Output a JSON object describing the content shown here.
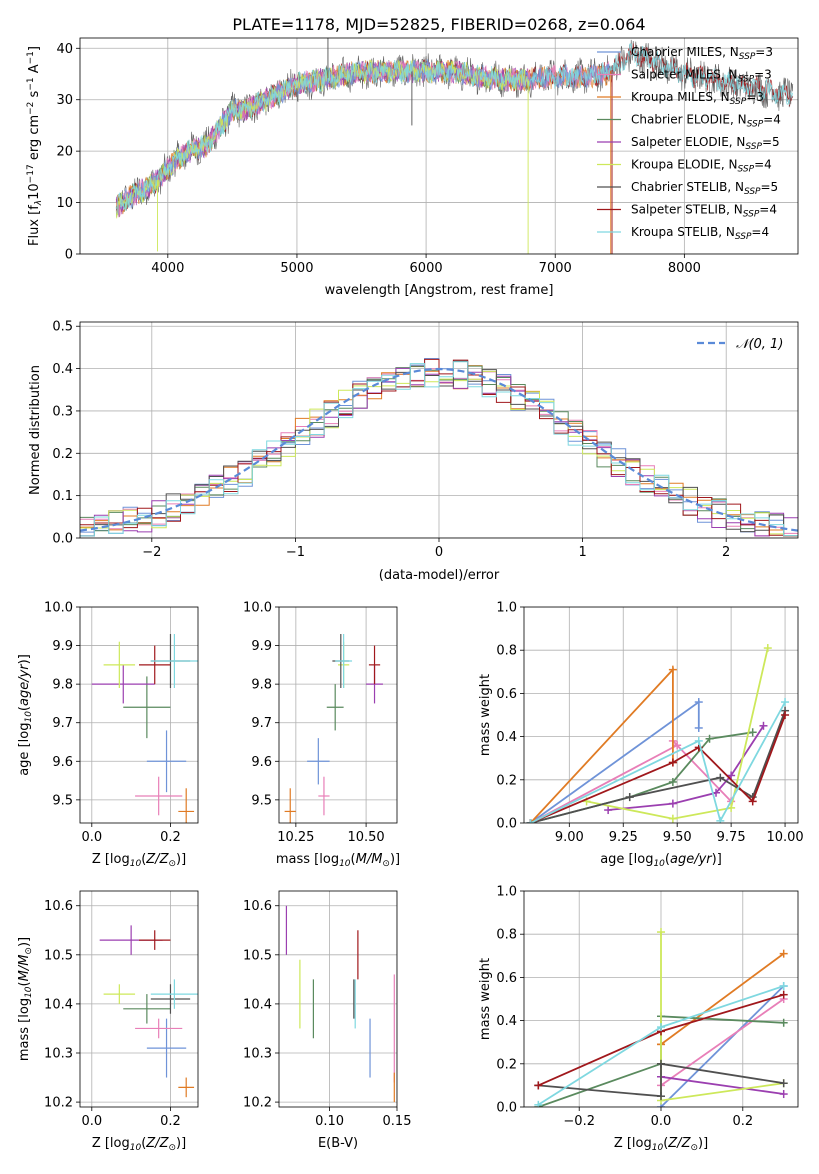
{
  "title": "PLATE=1178, MJD=52825, FIBERID=0268, z=0.064",
  "colors": {
    "chabrier_miles": "#6f93d8",
    "salpeter_miles": "#e87fb8",
    "kroupa_miles": "#e07b24",
    "chabrier_elodie": "#5a8a5e",
    "salpeter_elodie": "#9b3fb0",
    "kroupa_elodie": "#cde85a",
    "chabrier_stelib": "#505050",
    "salpeter_stelib": "#a0181c",
    "kroupa_stelib": "#7fd8e0",
    "normal": "#5a8ad8"
  },
  "chart_data": [
    {
      "id": "spectrum",
      "type": "line",
      "xlabel": "wavelength [Angstrom, rest frame]",
      "ylabel": "Flux [f_λ10^-17 erg cm^-2 s^-1 A^-1]",
      "xlim": [
        3320,
        8880
      ],
      "ylim": [
        0,
        42
      ],
      "xticks": [
        "4000",
        "5000",
        "6000",
        "7000",
        "8000"
      ],
      "yticks": [
        "0",
        "10",
        "20",
        "30",
        "40"
      ],
      "grid": true,
      "legend_position": "top-right",
      "legend": [
        "Chabrier MILES, N_SSP=3",
        "Salpeter MILES, N_SSP=3",
        "Kroupa MILES, N_SSP=3",
        "Chabrier ELODIE, N_SSP=4",
        "Salpeter ELODIE, N_SSP=5",
        "Kroupa ELODIE, N_SSP=4",
        "Chabrier STELIB, N_SSP=5",
        "Salpeter STELIB, N_SSP=4",
        "Kroupa STELIB, N_SSP=4"
      ],
      "legend_parts": [
        [
          "Chabrier MILES, N",
          "SSP",
          "=3"
        ],
        [
          "Salpeter MILES, N",
          "SSP",
          "=3"
        ],
        [
          "Kroupa MILES, N",
          "SSP",
          "=3"
        ],
        [
          "Chabrier ELODIE, N",
          "SSP",
          "=4"
        ],
        [
          "Salpeter ELODIE, N",
          "SSP",
          "=5"
        ],
        [
          "Kroupa ELODIE, N",
          "SSP",
          "=4"
        ],
        [
          "Chabrier STELIB, N",
          "SSP",
          "=5"
        ],
        [
          "Salpeter STELIB, N",
          "SSP",
          "=4"
        ],
        [
          "Kroupa STELIB, N",
          "SSP",
          "=4"
        ]
      ],
      "continuum": {
        "x": [
          3600,
          3700,
          3850,
          3950,
          4050,
          4200,
          4300,
          4400,
          4500,
          4600,
          4800,
          5000,
          5200,
          5400,
          5600,
          5800,
          6000,
          6200,
          6400,
          6600,
          6800,
          7000,
          7200,
          7400,
          7600,
          7800,
          8000,
          8200,
          8400,
          8600,
          8800
        ],
        "y": [
          9,
          11,
          13,
          15,
          18,
          20.5,
          21,
          24.5,
          28,
          28,
          30.5,
          33,
          34,
          35,
          35.5,
          35.5,
          35.5,
          35.5,
          34.5,
          34,
          34,
          34.5,
          34.5,
          35,
          39,
          37,
          35,
          34,
          33,
          32,
          31
        ]
      },
      "spikes": [
        {
          "x": 3920,
          "y": 0.5,
          "series": "kroupa_elodie"
        },
        {
          "x": 5240,
          "y": 42,
          "series": "chabrier_stelib"
        },
        {
          "x": 5890,
          "y": 25,
          "series": "chabrier_stelib"
        },
        {
          "x": 6790,
          "y": 0,
          "series": "kroupa_elodie"
        },
        {
          "x": 7430,
          "y": 0,
          "series": "kroupa_miles"
        },
        {
          "x": 7440,
          "y": 0,
          "series": "salpeter_stelib"
        }
      ]
    },
    {
      "id": "residual_hist",
      "type": "bar",
      "xlabel": "(data-model)/error",
      "ylabel": "Normed distribution",
      "xlim": [
        -2.5,
        2.5
      ],
      "ylim": [
        0,
        0.51
      ],
      "xticks": [
        "−2",
        "−1",
        "0",
        "1",
        "2"
      ],
      "yticks": [
        "0.0",
        "0.1",
        "0.2",
        "0.3",
        "0.4",
        "0.5"
      ],
      "grid": true,
      "legend_position": "top-right",
      "legend": [
        "𝒩(0, 1)"
      ],
      "bin_width": 0.1,
      "series_order": [
        "chabrier_miles",
        "salpeter_miles",
        "kroupa_miles",
        "chabrier_elodie",
        "salpeter_elodie",
        "kroupa_elodie",
        "chabrier_stelib",
        "salpeter_stelib",
        "kroupa_stelib"
      ],
      "normal_curve": {
        "mu": 0,
        "sigma": 1
      }
    },
    {
      "id": "age_vs_Z",
      "type": "scatter",
      "xlabel": "Z [log10(Z/Z⊙)]",
      "ylabel": "age [log10(age/yr)]",
      "xlim": [
        -0.03,
        0.27
      ],
      "ylim": [
        9.44,
        10.0
      ],
      "xticks": [
        "0.0",
        "0.2"
      ],
      "yticks": [
        "9.5",
        "9.6",
        "9.7",
        "9.8",
        "9.9",
        "10.0"
      ],
      "grid": true,
      "points": [
        {
          "series": "chabrier_miles",
          "x": 0.19,
          "xerr": 0.05,
          "y": 9.6,
          "yerr": 0.08
        },
        {
          "series": "salpeter_miles",
          "x": 0.17,
          "xerr": 0.06,
          "y": 9.51,
          "yerr": 0.05
        },
        {
          "series": "kroupa_miles",
          "x": 0.24,
          "xerr": 0.02,
          "y": 9.47,
          "yerr": 0.06
        },
        {
          "series": "chabrier_elodie",
          "x": 0.14,
          "xerr": 0.06,
          "y": 9.74,
          "yerr": 0.08
        },
        {
          "series": "salpeter_elodie",
          "x": 0.08,
          "xerr": 0.08,
          "y": 9.8,
          "yerr": 0.05
        },
        {
          "series": "kroupa_elodie",
          "x": 0.07,
          "xerr": 0.04,
          "y": 9.85,
          "yerr": 0.06
        },
        {
          "series": "chabrier_stelib",
          "x": 0.2,
          "xerr": 0.05,
          "y": 9.86,
          "yerr": 0.07
        },
        {
          "series": "salpeter_stelib",
          "x": 0.16,
          "xerr": 0.04,
          "y": 9.85,
          "yerr": 0.05
        },
        {
          "series": "kroupa_stelib",
          "x": 0.21,
          "xerr": 0.06,
          "y": 9.86,
          "yerr": 0.07
        }
      ]
    },
    {
      "id": "age_vs_mass",
      "type": "scatter",
      "xlabel": "mass [log10(M/M⊙)]",
      "ylabel": "",
      "xlim": [
        10.19,
        10.61
      ],
      "ylim": [
        9.44,
        10.0
      ],
      "xticks": [
        "10.25",
        "10.50"
      ],
      "yticks": [
        "9.5",
        "9.6",
        "9.7",
        "9.8",
        "9.9",
        "10.0"
      ],
      "grid": true,
      "points": [
        {
          "series": "chabrier_miles",
          "x": 10.33,
          "xerr": 0.04,
          "y": 9.6,
          "yerr": 0.06
        },
        {
          "series": "salpeter_miles",
          "x": 10.35,
          "xerr": 0.02,
          "y": 9.51,
          "yerr": 0.05
        },
        {
          "series": "kroupa_miles",
          "x": 10.23,
          "xerr": 0.02,
          "y": 9.47,
          "yerr": 0.06
        },
        {
          "series": "chabrier_elodie",
          "x": 10.39,
          "xerr": 0.03,
          "y": 9.74,
          "yerr": 0.06
        },
        {
          "series": "salpeter_elodie",
          "x": 10.53,
          "xerr": 0.03,
          "y": 9.8,
          "yerr": 0.05
        },
        {
          "series": "kroupa_elodie",
          "x": 10.42,
          "xerr": 0.02,
          "y": 9.85,
          "yerr": 0.06
        },
        {
          "series": "chabrier_stelib",
          "x": 10.41,
          "xerr": 0.03,
          "y": 9.86,
          "yerr": 0.07
        },
        {
          "series": "salpeter_stelib",
          "x": 10.53,
          "xerr": 0.02,
          "y": 9.85,
          "yerr": 0.05
        },
        {
          "series": "kroupa_stelib",
          "x": 10.42,
          "xerr": 0.03,
          "y": 9.86,
          "yerr": 0.07
        }
      ]
    },
    {
      "id": "weights_vs_age",
      "type": "line",
      "xlabel": "age [log10(age/yr)]",
      "ylabel": "mass weight",
      "xlim": [
        8.79,
        10.06
      ],
      "ylim": [
        0,
        1.0
      ],
      "xticks": [
        "9.00",
        "9.25",
        "9.50",
        "9.75",
        "10.00"
      ],
      "yticks": [
        "0.0",
        "0.2",
        "0.4",
        "0.6",
        "0.8",
        "1.0"
      ],
      "grid": true,
      "series": [
        {
          "key": "chabrier_miles",
          "x": [
            8.82,
            9.6,
            9.6
          ],
          "y": [
            0.0,
            0.56,
            0.44
          ]
        },
        {
          "key": "salpeter_miles",
          "x": [
            8.82,
            9.5,
            9.48,
            9.75
          ],
          "y": [
            0.0,
            0.36,
            0.38,
            0.1
          ]
        },
        {
          "key": "kroupa_miles",
          "x": [
            8.82,
            9.48,
            9.48
          ],
          "y": [
            0.0,
            0.71,
            0.28
          ]
        },
        {
          "key": "chabrier_elodie",
          "x": [
            8.82,
            9.28,
            9.48,
            9.65,
            9.85
          ],
          "y": [
            0.0,
            0.12,
            0.19,
            0.39,
            0.42
          ]
        },
        {
          "key": "salpeter_elodie",
          "x": [
            9.18,
            9.48,
            9.68,
            9.75,
            9.9
          ],
          "y": [
            0.06,
            0.09,
            0.14,
            0.22,
            0.45
          ]
        },
        {
          "key": "kroupa_elodie",
          "x": [
            9.08,
            9.48,
            9.75,
            9.92
          ],
          "y": [
            0.1,
            0.02,
            0.07,
            0.81
          ]
        },
        {
          "key": "chabrier_stelib",
          "x": [
            8.82,
            9.28,
            9.7,
            9.85,
            10.0
          ],
          "y": [
            0.0,
            0.12,
            0.21,
            0.12,
            0.52
          ]
        },
        {
          "key": "salpeter_stelib",
          "x": [
            8.82,
            9.48,
            9.6,
            9.85,
            10.0
          ],
          "y": [
            0.0,
            0.28,
            0.35,
            0.1,
            0.5
          ]
        },
        {
          "key": "kroupa_stelib",
          "x": [
            8.82,
            9.6,
            9.7,
            10.0
          ],
          "y": [
            0.0,
            0.38,
            0.01,
            0.56
          ]
        }
      ]
    },
    {
      "id": "mass_vs_Z",
      "type": "scatter",
      "xlabel": "Z [log10(Z/Z⊙)]",
      "ylabel": "mass [log10(M/M⊙)]",
      "xlim": [
        -0.03,
        0.27
      ],
      "ylim": [
        10.19,
        10.63
      ],
      "xticks": [
        "0.0",
        "0.2"
      ],
      "yticks": [
        "10.2",
        "10.3",
        "10.4",
        "10.5",
        "10.6"
      ],
      "grid": true,
      "points": [
        {
          "series": "chabrier_miles",
          "x": 0.19,
          "xerr": 0.05,
          "y": 10.31,
          "yerr": 0.06
        },
        {
          "series": "salpeter_miles",
          "x": 0.17,
          "xerr": 0.06,
          "y": 10.35,
          "yerr": 0.02
        },
        {
          "series": "kroupa_miles",
          "x": 0.24,
          "xerr": 0.02,
          "y": 10.23,
          "yerr": 0.02
        },
        {
          "series": "chabrier_elodie",
          "x": 0.14,
          "xerr": 0.06,
          "y": 10.39,
          "yerr": 0.03
        },
        {
          "series": "salpeter_elodie",
          "x": 0.1,
          "xerr": 0.08,
          "y": 10.53,
          "yerr": 0.03
        },
        {
          "series": "kroupa_elodie",
          "x": 0.07,
          "xerr": 0.04,
          "y": 10.42,
          "yerr": 0.02
        },
        {
          "series": "chabrier_stelib",
          "x": 0.2,
          "xerr": 0.05,
          "y": 10.41,
          "yerr": 0.03
        },
        {
          "series": "salpeter_stelib",
          "x": 0.16,
          "xerr": 0.04,
          "y": 10.53,
          "yerr": 0.02
        },
        {
          "series": "kroupa_stelib",
          "x": 0.21,
          "xerr": 0.06,
          "y": 10.42,
          "yerr": 0.03
        }
      ]
    },
    {
      "id": "mass_vs_ebv",
      "type": "scatter",
      "xlabel": "E(B-V)",
      "ylabel": "",
      "xlim": [
        0.0625,
        0.15
      ],
      "ylim": [
        10.19,
        10.63
      ],
      "xticks": [
        "0.10",
        "0.15"
      ],
      "yticks": [
        "10.2",
        "10.3",
        "10.4",
        "10.5",
        "10.6"
      ],
      "grid": true,
      "points": [
        {
          "series": "chabrier_miles",
          "x": 0.13,
          "y": 10.31,
          "yerr": 0.06
        },
        {
          "series": "salpeter_miles",
          "x": 0.148,
          "y": 10.35,
          "yerr": 0.11
        },
        {
          "series": "kroupa_miles",
          "x": 0.148,
          "y": 10.23,
          "yerr": 0.03
        },
        {
          "series": "chabrier_elodie",
          "x": 0.088,
          "y": 10.39,
          "yerr": 0.06
        },
        {
          "series": "salpeter_elodie",
          "x": 0.068,
          "y": 10.55,
          "yerr": 0.05
        },
        {
          "series": "kroupa_elodie",
          "x": 0.078,
          "y": 10.42,
          "yerr": 0.07
        },
        {
          "series": "chabrier_stelib",
          "x": 0.118,
          "y": 10.41,
          "yerr": 0.04
        },
        {
          "series": "salpeter_stelib",
          "x": 0.121,
          "y": 10.5,
          "yerr": 0.05
        },
        {
          "series": "kroupa_stelib",
          "x": 0.119,
          "y": 10.4,
          "yerr": 0.05
        }
      ]
    },
    {
      "id": "weights_vs_Z",
      "type": "line",
      "xlabel": "Z [log10(Z/Z⊙)]",
      "ylabel": "mass weight",
      "xlim": [
        -0.335,
        0.335
      ],
      "ylim": [
        0,
        1.0
      ],
      "xticks": [
        "−0.2",
        "0.0",
        "0.2"
      ],
      "yticks": [
        "0.0",
        "0.2",
        "0.4",
        "0.6",
        "0.8",
        "1.0"
      ],
      "grid": true,
      "series": [
        {
          "key": "chabrier_miles",
          "x": [
            0.0,
            0.3
          ],
          "y": [
            0.0,
            0.56
          ]
        },
        {
          "key": "salpeter_miles",
          "x": [
            0.0,
            0.3
          ],
          "y": [
            0.1,
            0.5
          ]
        },
        {
          "key": "kroupa_miles",
          "x": [
            0.0,
            0.0,
            0.3
          ],
          "y": [
            0.29,
            0.29,
            0.71
          ]
        },
        {
          "key": "chabrier_elodie",
          "x": [
            -0.3,
            0.0,
            0.0,
            0.3
          ],
          "y": [
            0.0,
            0.2,
            0.42,
            0.39
          ]
        },
        {
          "key": "salpeter_elodie",
          "x": [
            0.0,
            0.3
          ],
          "y": [
            0.14,
            0.06
          ]
        },
        {
          "key": "kroupa_elodie",
          "x": [
            0.0,
            0.0,
            0.3
          ],
          "y": [
            0.81,
            0.03,
            0.11
          ]
        },
        {
          "key": "chabrier_stelib",
          "x": [
            -0.3,
            0.0,
            0.0,
            0.3
          ],
          "y": [
            0.1,
            0.05,
            0.2,
            0.11
          ]
        },
        {
          "key": "salpeter_stelib",
          "x": [
            -0.3,
            0.0,
            0.3
          ],
          "y": [
            0.1,
            0.35,
            0.52
          ]
        },
        {
          "key": "kroupa_stelib",
          "x": [
            -0.3,
            0.0,
            0.3
          ],
          "y": [
            0.01,
            0.37,
            0.56
          ]
        }
      ]
    }
  ]
}
